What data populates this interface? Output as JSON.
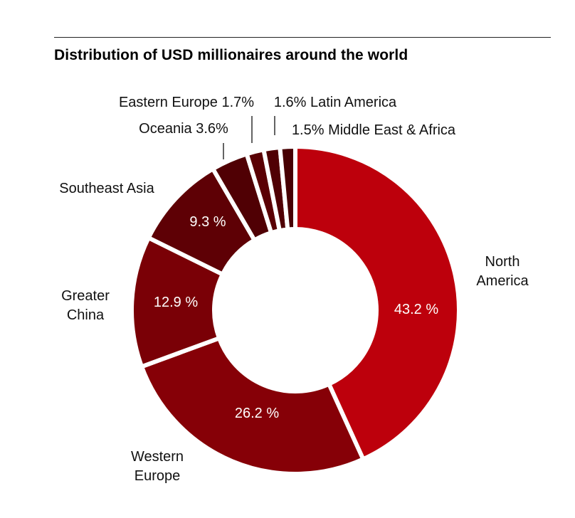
{
  "chart_data": {
    "type": "pie",
    "title": "Distribution of USD millionaires around the world",
    "slices": [
      {
        "category": "North America",
        "value": 43.2,
        "value_label": "43.2 %",
        "color": "#BD000C",
        "label_lines": [
          "North",
          "America"
        ]
      },
      {
        "category": "Western Europe",
        "value": 26.2,
        "value_label": "26.2 %",
        "color": "#860007",
        "label_lines": [
          "Western",
          "Europe"
        ]
      },
      {
        "category": "Greater China",
        "value": 12.9,
        "value_label": "12.9 %",
        "color": "#7A0006",
        "label_lines": [
          "Greater",
          "China"
        ]
      },
      {
        "category": "Southeast Asia",
        "value": 9.3,
        "value_label": "9.3 %",
        "color": "#5E0005",
        "label_lines": [
          "Southeast Asia"
        ]
      },
      {
        "category": "Oceania",
        "value": 3.6,
        "value_label": "Oceania 3.6%",
        "color": "#500004",
        "label_lines": [
          "Oceania 3.6%"
        ]
      },
      {
        "category": "Eastern Europe",
        "value": 1.7,
        "value_label": "Eastern Europe 1.7%",
        "color": "#5A0004",
        "label_lines": [
          "Eastern Europe 1.7%"
        ]
      },
      {
        "category": "Latin America",
        "value": 1.6,
        "value_label": "1.6% Latin America",
        "color": "#500004",
        "label_lines": [
          "1.6% Latin America"
        ]
      },
      {
        "category": "Middle East & Africa",
        "value": 1.5,
        "value_label": "1.5% Middle East & Africa",
        "color": "#480003",
        "label_lines": [
          "1.5% Middle East & Africa"
        ]
      }
    ],
    "hole": true,
    "legend": "none"
  }
}
